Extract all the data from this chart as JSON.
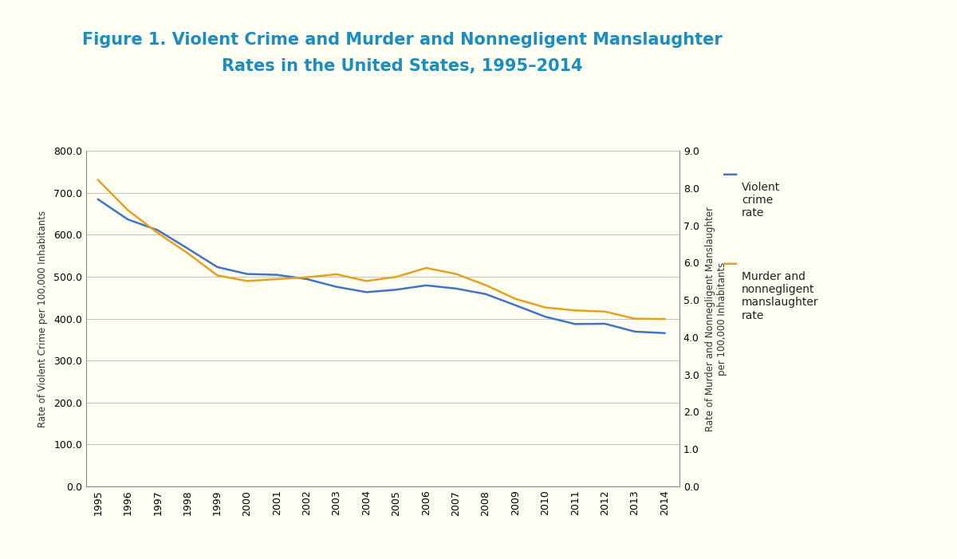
{
  "title_line1": "Figure 1. Violent Crime and Murder and Nonnegligent Manslaughter",
  "title_line2": "Rates in the United States, 1995–2014",
  "years": [
    1995,
    1996,
    1997,
    1998,
    1999,
    2000,
    2001,
    2002,
    2003,
    2004,
    2005,
    2006,
    2007,
    2008,
    2009,
    2010,
    2011,
    2012,
    2013,
    2014
  ],
  "violent_crime": [
    684.5,
    636.6,
    611.0,
    567.6,
    523.0,
    506.5,
    504.5,
    494.4,
    475.8,
    463.2,
    469.0,
    479.3,
    471.8,
    458.6,
    431.9,
    404.5,
    387.1,
    387.8,
    369.1,
    365.5
  ],
  "murder": [
    8.22,
    7.41,
    6.8,
    6.26,
    5.66,
    5.51,
    5.56,
    5.61,
    5.69,
    5.51,
    5.62,
    5.86,
    5.7,
    5.4,
    5.03,
    4.8,
    4.72,
    4.69,
    4.5,
    4.49
  ],
  "violent_crime_color": "#4472C4",
  "murder_color": "#E8A020",
  "background_color": "#FEFEF2",
  "title_color": "#1B8DC0",
  "ylim_left": [
    0.0,
    800.0
  ],
  "ylim_right": [
    0.0,
    9.0
  ],
  "yticks_left": [
    0.0,
    100.0,
    200.0,
    300.0,
    400.0,
    500.0,
    600.0,
    700.0,
    800.0
  ],
  "yticks_right": [
    0.0,
    1.0,
    2.0,
    3.0,
    4.0,
    5.0,
    6.0,
    7.0,
    8.0,
    9.0
  ],
  "ylabel_left": "Rate of Violent Crime per 100,000 Inhabitants",
  "ylabel_right": "Rate of Murder and Nonnegligent Manslaughter\nper 100,000 Inhabitants",
  "legend_label_1": "Violent\ncrime\nrate",
  "legend_label_2": "Murder and\nnonnegligent\nmanslaughter\nrate",
  "line_width": 1.8,
  "title_fontsize": 15,
  "axis_label_fontsize": 8.5,
  "tick_fontsize": 9,
  "legend_fontsize": 10,
  "grid_color": "#BBBBBB",
  "grid_linewidth": 0.6
}
